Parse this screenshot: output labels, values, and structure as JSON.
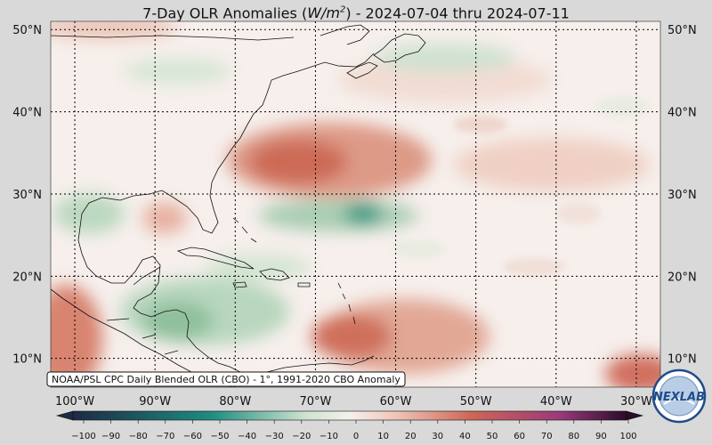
{
  "title": {
    "prefix": "7-Day OLR Anomalies (",
    "units": "W/m",
    "units_sup": "2",
    "suffix": ") - 2024-07-04 thru 2024-07-11"
  },
  "map": {
    "lon_range": [
      -103,
      -27
    ],
    "lat_range": [
      6.5,
      51
    ],
    "lon_ticks": [
      {
        "value": -100,
        "label": "100°W"
      },
      {
        "value": -90,
        "label": "90°W"
      },
      {
        "value": -80,
        "label": "80°W"
      },
      {
        "value": -70,
        "label": "70°W"
      },
      {
        "value": -60,
        "label": "60°W"
      },
      {
        "value": -50,
        "label": "50°W"
      },
      {
        "value": -40,
        "label": "40°W"
      },
      {
        "value": -30,
        "label": "30°W"
      }
    ],
    "lat_ticks": [
      {
        "value": 10,
        "label": "10°N"
      },
      {
        "value": 20,
        "label": "20°N"
      },
      {
        "value": 30,
        "label": "30°N"
      },
      {
        "value": 40,
        "label": "40°N"
      },
      {
        "value": 50,
        "label": "50°N"
      }
    ],
    "grid": "dotted",
    "source_note": "NOAA/PSL CPC Daily Blended OLR (CBO) - 1°, 1991-2020 CBO Anomaly",
    "anomaly_features": [
      {
        "name": "positive-anomaly-off-us-east-coast",
        "lon": -63,
        "lat": 34,
        "value": 45
      },
      {
        "name": "positive-anomaly-central-atlantic-north",
        "lon": -42,
        "lat": 33,
        "value": 18
      },
      {
        "name": "positive-anomaly-tropical-atlantic",
        "lon": -55,
        "lat": 13,
        "value": 35
      },
      {
        "name": "positive-anomaly-mexico-pacific",
        "lon": -101,
        "lat": 15,
        "value": 40
      },
      {
        "name": "positive-anomaly-gulf-central",
        "lon": -87,
        "lat": 27,
        "value": 20
      },
      {
        "name": "positive-anomaly-sw-corner",
        "lon": -31,
        "lat": 8,
        "value": 40
      },
      {
        "name": "negative-anomaly-subtropical-band",
        "lon": -61,
        "lat": 27.5,
        "value": -55
      },
      {
        "name": "negative-anomaly-central-america",
        "lon": -79,
        "lat": 14,
        "value": -35
      },
      {
        "name": "negative-anomaly-gulf-coast",
        "lon": -94,
        "lat": 28,
        "value": -25
      },
      {
        "name": "negative-anomaly-newfoundland",
        "lon": -50,
        "lat": 48,
        "value": -20
      }
    ]
  },
  "colorbar": {
    "ticks": [
      "−100",
      "−90",
      "−80",
      "−70",
      "−60",
      "−50",
      "−40",
      "−30",
      "−20",
      "−10",
      "0",
      "10",
      "20",
      "30",
      "40",
      "50",
      "60",
      "70",
      "80",
      "90",
      "100"
    ],
    "range": [
      -100,
      100
    ],
    "extend": "both",
    "colors": {
      "neg_deep": "#1d2a44",
      "neg_mid": "#1f8c80",
      "neg_light": "#cfe3cf",
      "neutral": "#f6f0ee",
      "pos_light": "#efc8ba",
      "pos_mid": "#cd6656",
      "pos_deep": "#9a3a7a",
      "pos_end": "#2a0c2a"
    }
  },
  "logo": {
    "text": "NEXLAB",
    "colors": {
      "ring": "#1f4c8a",
      "fill": "#b9cde6"
    }
  }
}
